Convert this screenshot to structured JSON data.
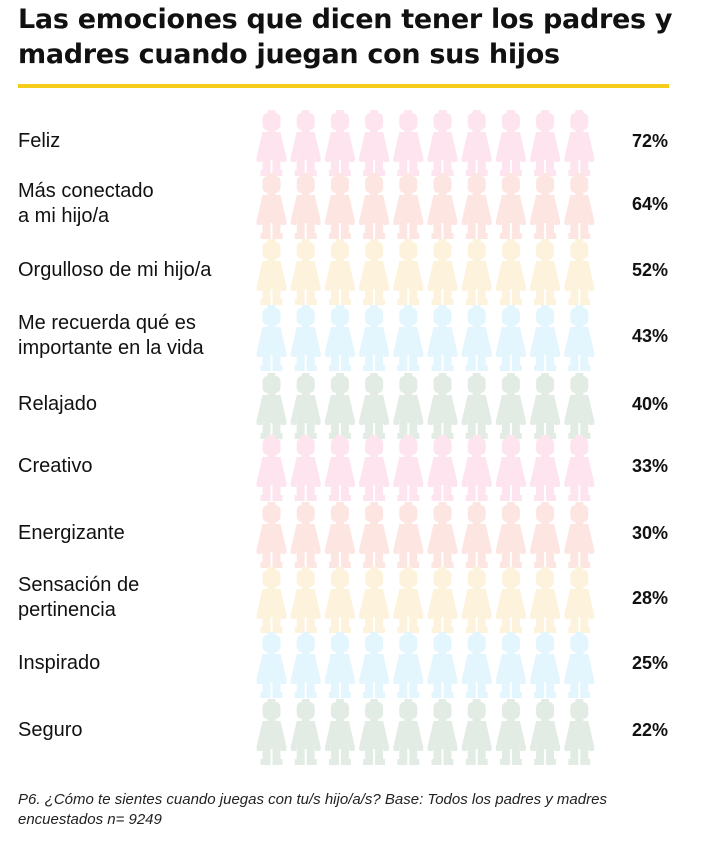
{
  "title": "Las emociones que dicen tener los padres y madres cuando juegan con sus hijos",
  "footnote": "P6. ¿Cómo te sientes cuando juegas con tu/s hijo/a/s? Base: Todos los padres y madres encuestados n= 9249",
  "icon": "minifigure-icon",
  "colors": {
    "rule": "#f5cc1a",
    "pink": "#ee1b8c",
    "red": "#e8211c",
    "orange": "#f7a90f",
    "blue": "#12aee6",
    "green": "#149138",
    "pink_light": "#fde4ef",
    "red_light": "#fde6e2",
    "orange_light": "#fdf3dd",
    "blue_light": "#e3f5fd",
    "green_light": "#e2ece4"
  },
  "chart_data": {
    "type": "bar",
    "title": "Las emociones que dicen tener los padres y madres cuando juegan con sus hijos",
    "unit": "%",
    "icons_per_row": 10,
    "icon_represents_percent": 10,
    "categories": [
      "Feliz",
      "Más conectado\na mi hijo/a",
      "Orgulloso de mi hijo/a",
      "Me recuerda qué es\nimportante en la vida",
      "Relajado",
      "Creativo",
      "Energizante",
      " Sensación de\npertinencia",
      "Inspirado",
      "Seguro"
    ],
    "values": [
      72,
      64,
      52,
      43,
      40,
      33,
      30,
      28,
      25,
      22
    ],
    "value_labels": [
      "72%",
      "64%",
      "52%",
      "43%",
      "40%",
      "33%",
      "30%",
      "28%",
      "25%",
      "22%"
    ],
    "row_colors": [
      "pink",
      "red",
      "orange",
      "blue",
      "green",
      "pink",
      "red",
      "orange",
      "blue",
      "green"
    ]
  }
}
